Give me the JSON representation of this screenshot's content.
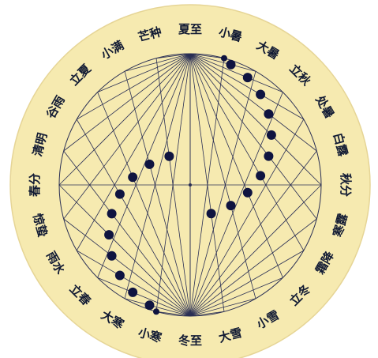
{
  "diagram": {
    "colors": {
      "disc": "#f6eab0",
      "disc_edge": "#e6d596",
      "lines": "#2a2f55",
      "dots": "#0f1440",
      "text": "#111a33"
    },
    "solar_terms": [
      {
        "id": "xiazhi",
        "label": "夏至"
      },
      {
        "id": "xiaoshu",
        "label": "小暑"
      },
      {
        "id": "dashu",
        "label": "大暑"
      },
      {
        "id": "liqiu",
        "label": "立秋"
      },
      {
        "id": "chushu",
        "label": "处暑"
      },
      {
        "id": "bailu",
        "label": "白露"
      },
      {
        "id": "qiufen",
        "label": "秋分"
      },
      {
        "id": "hanlu",
        "label": "寒露"
      },
      {
        "id": "shuangjiang",
        "label": "霜降"
      },
      {
        "id": "lidong",
        "label": "立冬"
      },
      {
        "id": "xiaoxue",
        "label": "小雪"
      },
      {
        "id": "daxue",
        "label": "大雪"
      },
      {
        "id": "dongzhi",
        "label": "冬至"
      },
      {
        "id": "xiaohan",
        "label": "小寒"
      },
      {
        "id": "dahan",
        "label": "大寒"
      },
      {
        "id": "lichun",
        "label": "立春"
      },
      {
        "id": "yushui",
        "label": "雨水"
      },
      {
        "id": "jingzhe",
        "label": "惊蛰"
      },
      {
        "id": "chunfen",
        "label": "春分"
      },
      {
        "id": "qingming",
        "label": "清明"
      },
      {
        "id": "guyu",
        "label": "谷雨"
      },
      {
        "id": "lixia",
        "label": "立夏"
      },
      {
        "id": "xiaoman",
        "label": "小满"
      },
      {
        "id": "mangzhong",
        "label": "芒种"
      }
    ]
  }
}
